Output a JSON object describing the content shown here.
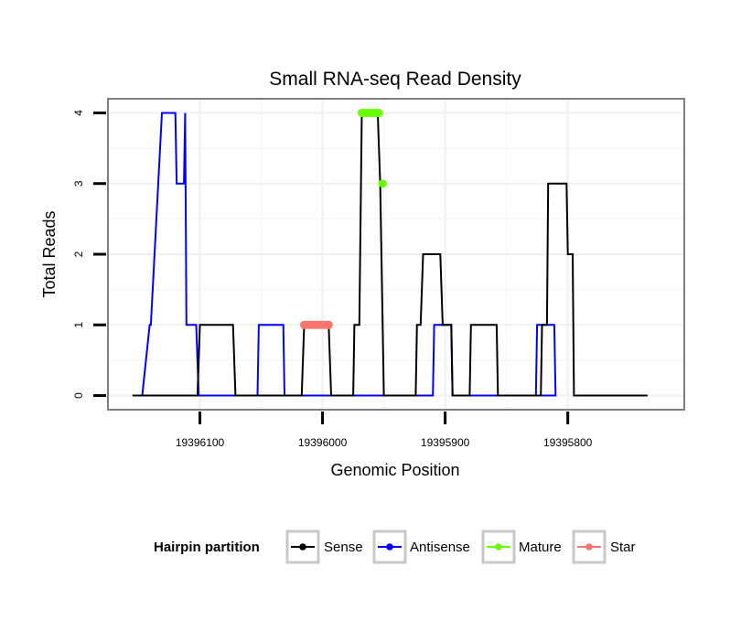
{
  "chart_data": {
    "type": "line",
    "title": "Small RNA-seq Read Density",
    "xlabel": "Genomic Position",
    "ylabel": "Total Reads",
    "x_reversed": true,
    "xlim": [
      19396175,
      19395705
    ],
    "ylim": [
      -0.2,
      4.2
    ],
    "x_ticks": [
      19396100,
      19396000,
      19395900,
      19395800
    ],
    "x_tick_labels": [
      "19396100",
      "19396000",
      "19395900",
      "19395800"
    ],
    "y_ticks": [
      0,
      1,
      2,
      3,
      4
    ],
    "y_tick_labels": [
      "0",
      "1",
      "2",
      "3",
      "4"
    ],
    "grid": true,
    "legend": {
      "title": "Hairpin partition",
      "position": "bottom",
      "entries": [
        {
          "label": "Sense",
          "color": "#000000"
        },
        {
          "label": "Antisense",
          "color": "#0000ff"
        },
        {
          "label": "Mature",
          "color": "#66ff00"
        },
        {
          "label": "Star",
          "color": "#f8766d"
        }
      ]
    },
    "series": [
      {
        "name": "Antisense",
        "color": "#0000ff",
        "kind": "line",
        "x": [
          19396147,
          19396141,
          19396140,
          19396131,
          19396130,
          19396120,
          19396119,
          19396113,
          19396112,
          19396111,
          19396110,
          19396109,
          19396103,
          19396101,
          19396100,
          19396075,
          19396053,
          19396052,
          19396032,
          19396031,
          19395930,
          19395910,
          19395909,
          19395895,
          19395894,
          19395826,
          19395825,
          19395811,
          19395810,
          19395864,
          19395865
        ],
        "y": [
          0,
          1,
          1,
          4,
          4,
          4,
          3,
          3,
          4,
          1,
          1,
          1,
          1,
          0,
          0,
          0,
          0,
          1,
          1,
          0,
          0,
          0,
          1,
          1,
          0,
          0,
          1,
          1,
          0,
          0,
          0
        ]
      },
      {
        "name": "Sense",
        "color": "#000000",
        "kind": "line",
        "x": [
          19396155,
          19396102,
          19396100,
          19396073,
          19396071,
          19396017,
          19396015,
          19395995,
          19395993,
          19395975,
          19395974,
          19395970,
          19395968,
          19395955,
          19395953,
          19395950,
          19395924,
          19395923,
          19395920,
          19395918,
          19395904,
          19395902,
          19395895,
          19395894,
          19395880,
          19395879,
          19395858,
          19395857,
          19395837,
          19395836,
          19395822,
          19395821,
          19395817,
          19395816,
          19395815,
          19395811,
          19395810,
          19395801,
          19395800,
          19395796,
          19395795,
          19395735
        ],
        "y": [
          0,
          0,
          1,
          1,
          0,
          0,
          1,
          1,
          0,
          0,
          1,
          1,
          4,
          4,
          3,
          0,
          0,
          1,
          1,
          2,
          2,
          1,
          1,
          0,
          0,
          1,
          1,
          0,
          0,
          0,
          0,
          1,
          1,
          3,
          3,
          3,
          3,
          3,
          2,
          2,
          0,
          0
        ]
      },
      {
        "name": "Mature",
        "color": "#66ff00",
        "kind": "points",
        "x": [
          19395968,
          19395966,
          19395964,
          19395962,
          19395960,
          19395958,
          19395956,
          19395954,
          19395951
        ],
        "y": [
          4,
          4,
          4,
          4,
          4,
          4,
          4,
          4,
          3
        ]
      },
      {
        "name": "Star",
        "color": "#f8766d",
        "kind": "points",
        "x": [
          19396015,
          19396013,
          19396011,
          19396009,
          19396007,
          19396005,
          19396003,
          19396001,
          19395999,
          19395997,
          19395995
        ],
        "y": [
          1,
          1,
          1,
          1,
          1,
          1,
          1,
          1,
          1,
          1,
          1
        ]
      }
    ]
  }
}
